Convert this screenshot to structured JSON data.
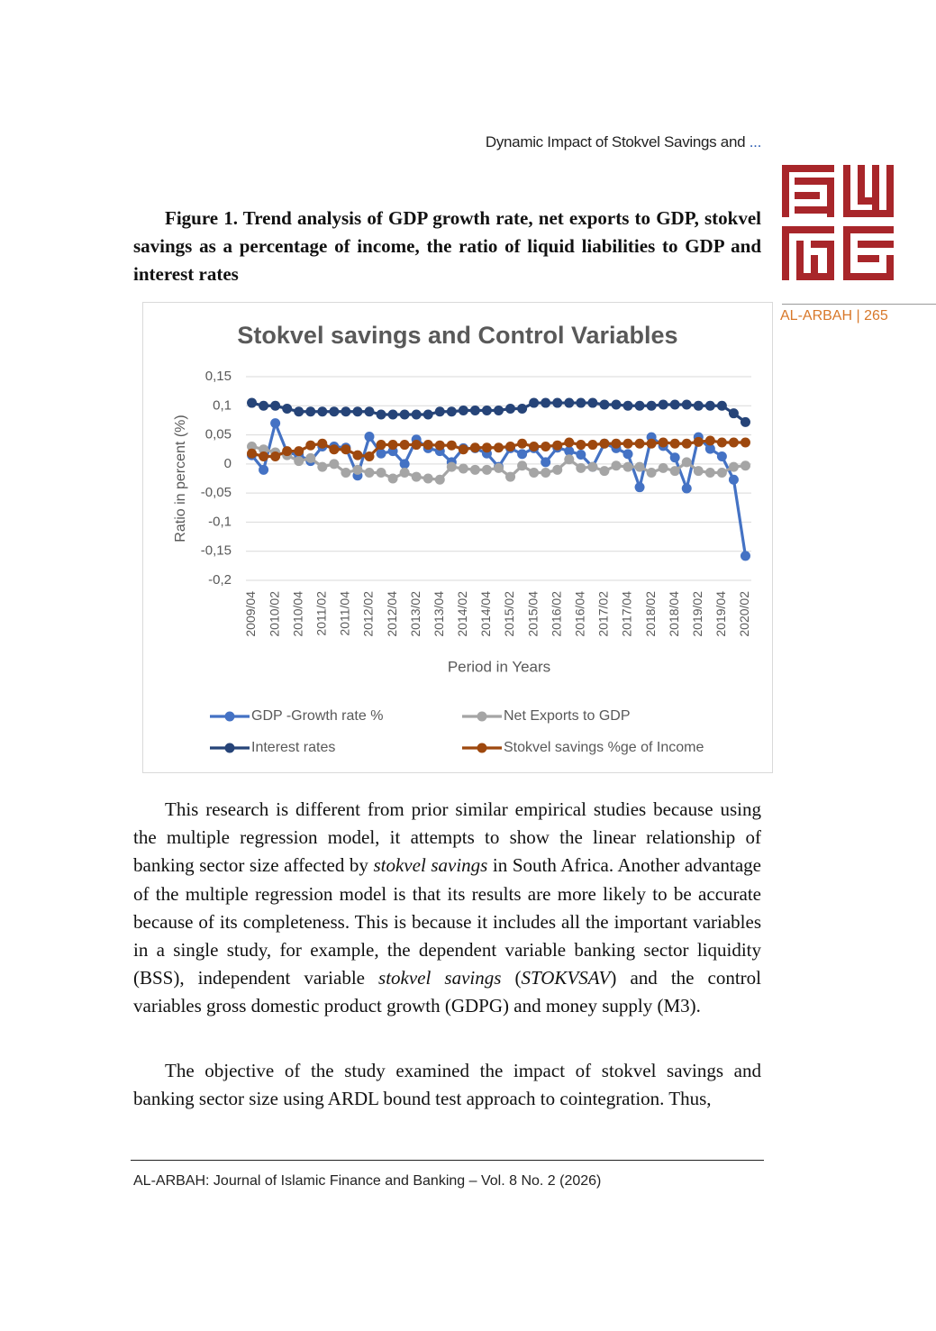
{
  "header": {
    "running_title": "Dynamic Impact of Stokvel Savings and",
    "ellipsis": "...",
    "journal_page": "AL-ARBAH | 265"
  },
  "figure": {
    "caption": "Figure 1. Trend analysis of GDP growth rate, net exports to GDP, stokvel savings as a percentage of income, the ratio of liquid liabilities to GDP and interest rates"
  },
  "chart_data": {
    "type": "line",
    "title": "Stokvel savings and Control Variables",
    "y_label": "Ratio in percent (%)",
    "x_label": "Period in Years",
    "categories": [
      "2009/04",
      null,
      "2010/02",
      null,
      "2010/04",
      null,
      "2011/02",
      null,
      "2011/04",
      null,
      "2012/02",
      null,
      "2012/04",
      null,
      "2013/02",
      null,
      "2013/04",
      null,
      "2014/02",
      null,
      "2014/04",
      null,
      "2015/02",
      null,
      "2015/04",
      null,
      "2016/02",
      null,
      "2016/04",
      null,
      "2017/02",
      null,
      "2017/04",
      null,
      "2018/02",
      null,
      "2018/04",
      null,
      "2019/02",
      null,
      "2019/04",
      null,
      "2020/02"
    ],
    "ylim": [
      -0.2,
      0.15
    ],
    "yticks": [
      {
        "value": 0.15,
        "label": "0,15"
      },
      {
        "value": 0.1,
        "label": "0,1"
      },
      {
        "value": 0.05,
        "label": "0,05"
      },
      0,
      {
        "value": -0.05,
        "label": "-0,05"
      },
      {
        "value": -0.1,
        "label": "-0,1"
      },
      {
        "value": -0.15,
        "label": "-0,15"
      },
      {
        "value": -0.2,
        "label": "-0,2"
      }
    ],
    "grid": true,
    "legend": "bottom",
    "series": [
      {
        "name": "GDP -Growth rate %",
        "color": "#4472c4",
        "values": [
          0.015,
          -0.01,
          0.07,
          0.02,
          0.015,
          0.005,
          0.03,
          0.03,
          0.028,
          -0.02,
          0.047,
          0.018,
          0.022,
          0,
          0.042,
          0.027,
          0.022,
          0.003,
          0.027,
          0.027,
          0.018,
          -0.005,
          0.027,
          0.017,
          0.027,
          0.003,
          0.028,
          0.022,
          0.016,
          -0.005,
          0.035,
          0.027,
          0.017,
          -0.04,
          0.046,
          0.031,
          0.011,
          -0.042,
          0.046,
          0.026,
          0.013,
          -0.027,
          -0.158
        ]
      },
      {
        "name": "Net Exports to GDP",
        "color": "#a5a5a5",
        "values": [
          0.03,
          0.025,
          0.02,
          0.015,
          0.005,
          0.01,
          -0.005,
          0,
          -0.015,
          -0.01,
          -0.015,
          -0.015,
          -0.025,
          -0.015,
          -0.022,
          -0.025,
          -0.027,
          -0.005,
          -0.008,
          -0.01,
          -0.01,
          -0.007,
          -0.022,
          -0.003,
          -0.015,
          -0.015,
          -0.01,
          0.008,
          -0.007,
          -0.005,
          -0.012,
          -0.003,
          -0.005,
          -0.005,
          -0.015,
          -0.007,
          -0.012,
          0.003,
          -0.012,
          -0.015,
          -0.015,
          -0.005,
          -0.003
        ]
      },
      {
        "name": "Interest rates",
        "color": "#264478",
        "values": [
          0.105,
          0.1,
          0.1,
          0.095,
          0.09,
          0.09,
          0.09,
          0.09,
          0.09,
          0.09,
          0.09,
          0.085,
          0.085,
          0.085,
          0.085,
          0.085,
          0.09,
          0.09,
          0.092,
          0.092,
          0.092,
          0.092,
          0.095,
          0.095,
          0.105,
          0.105,
          0.105,
          0.105,
          0.105,
          0.105,
          0.102,
          0.102,
          0.1,
          0.1,
          0.1,
          0.102,
          0.102,
          0.102,
          0.1,
          0.1,
          0.1,
          0.087,
          0.072
        ]
      },
      {
        "name": "Stokvel savings %ge of Income",
        "color": "#9e480e",
        "values": [
          0.018,
          0.013,
          0.013,
          0.022,
          0.022,
          0.032,
          0.035,
          0.025,
          0.025,
          0.015,
          0.013,
          0.033,
          0.033,
          0.033,
          0.033,
          0.033,
          0.032,
          0.032,
          0.025,
          0.028,
          0.028,
          0.028,
          0.03,
          0.035,
          0.03,
          0.03,
          0.032,
          0.037,
          0.033,
          0.033,
          0.035,
          0.035,
          0.035,
          0.035,
          0.035,
          0.037,
          0.035,
          0.035,
          0.038,
          0.04,
          0.037,
          0.037,
          0.037
        ]
      }
    ]
  },
  "body": {
    "paragraphs": [
      [
        "This research is different from prior similar empirical studies because using the multiple regression model, it attempts to show the linear relationship of banking sector size affected by ",
        "stokvel savings",
        " in South Africa. Another advantage of the multiple regression model is that its results are more likely to be accurate because of its completeness. This is because it includes all the important variables in a single study, for example, the dependent variable banking sector liquidity (BSS), independent variable ",
        "stokvel savings",
        " (",
        "STOKVSAV",
        ") and the control variables gross domestic product growth (GDPG) and money supply (M3)."
      ],
      [
        "The objective of the study examined the impact of stokvel savings and banking sector size using ARDL bound test approach to cointegration. Thus,"
      ]
    ]
  },
  "footer": {
    "citation": "AL-ARBAH: Journal of Islamic Finance and Banking – Vol. 8 No. 2 (2026)"
  }
}
